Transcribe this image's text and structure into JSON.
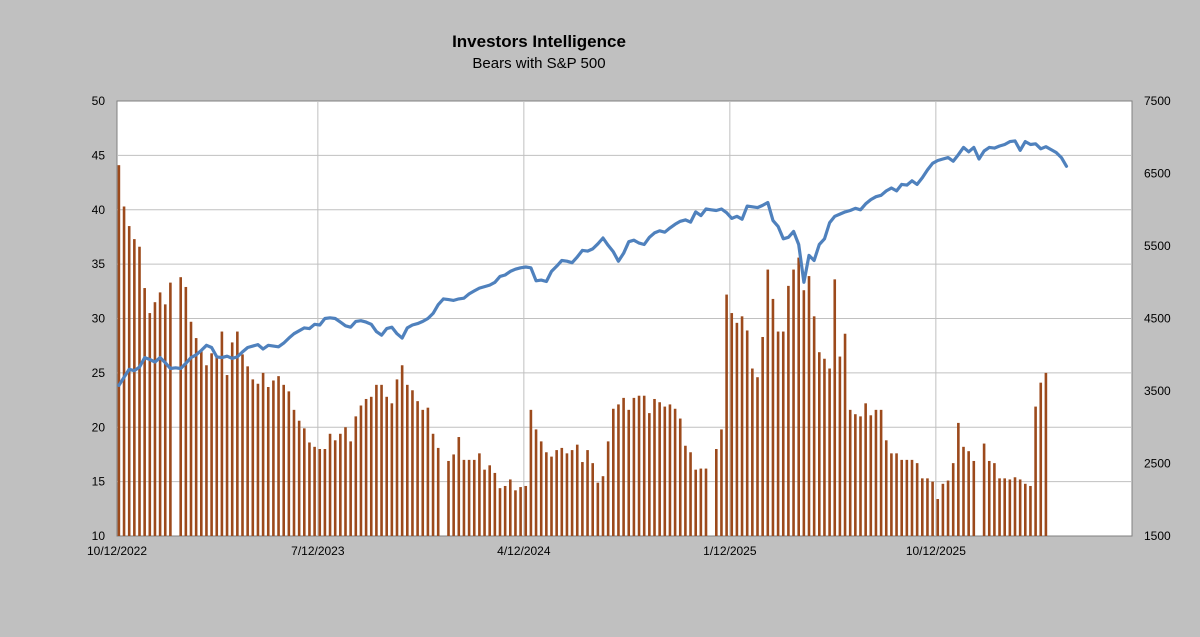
{
  "chart_data": {
    "type": "bar+line",
    "title": "Investors Intelligence",
    "subtitle": "Bears with S&P 500",
    "x_tick_labels": [
      "10/12/2022",
      "7/12/2023",
      "4/12/2024",
      "1/12/2025",
      "10/12/2025"
    ],
    "left_axis": {
      "ylim": [
        10,
        50
      ],
      "ticks": [
        10,
        15,
        20,
        25,
        30,
        35,
        40,
        45,
        50
      ]
    },
    "right_axis": {
      "ylim": [
        1500,
        7500
      ],
      "ticks": [
        1500,
        2500,
        3500,
        4500,
        5500,
        6500,
        7500
      ]
    },
    "grid": true,
    "legend": "none",
    "colors": {
      "bars": "#9c4a1c",
      "line": "#4f81bd",
      "plot_bg": "#ffffff",
      "grid": "#c0c0c0",
      "frame_bg": "#c0c0c0"
    },
    "bars": {
      "name": "Bears",
      "axis": "left",
      "values": [
        44.1,
        40.3,
        38.5,
        37.3,
        36.6,
        32.8,
        30.5,
        31.5,
        32.4,
        31.3,
        33.3,
        0,
        33.8,
        32.9,
        29.7,
        28.2,
        27.1,
        25.7,
        26.8,
        26.5,
        28.8,
        24.8,
        27.8,
        28.8,
        26.7,
        25.6,
        24.4,
        24.0,
        25.0,
        23.7,
        24.3,
        24.7,
        23.9,
        23.3,
        21.6,
        20.6,
        19.9,
        18.6,
        18.2,
        18.0,
        18.0,
        19.4,
        18.8,
        19.4,
        20.0,
        18.7,
        21.0,
        22.0,
        22.6,
        22.8,
        23.9,
        23.9,
        22.8,
        22.2,
        24.4,
        25.7,
        23.9,
        23.4,
        22.4,
        21.6,
        21.8,
        19.4,
        18.1,
        0,
        16.9,
        17.5,
        19.1,
        17.0,
        17.0,
        17.0,
        17.6,
        16.1,
        16.5,
        15.8,
        14.4,
        14.6,
        15.2,
        14.2,
        14.5,
        14.6,
        21.6,
        19.8,
        18.7,
        17.7,
        17.3,
        17.9,
        18.1,
        17.6,
        17.9,
        18.4,
        16.8,
        17.9,
        16.7,
        14.9,
        15.5,
        18.7,
        21.7,
        22.1,
        22.7,
        21.6,
        22.7,
        22.9,
        22.9,
        21.3,
        22.6,
        22.3,
        21.9,
        22.1,
        21.7,
        20.8,
        18.3,
        17.7,
        16.1,
        16.2,
        16.2,
        0,
        18.0,
        19.8,
        32.2,
        30.5,
        29.6,
        30.2,
        28.9,
        25.4,
        24.6,
        28.3,
        34.5,
        31.8,
        28.8,
        28.8,
        33.0,
        34.5,
        35.6,
        32.6,
        33.9,
        30.2,
        26.9,
        26.3,
        25.4,
        33.6,
        26.5,
        28.6,
        21.6,
        21.2,
        21.0,
        22.2,
        21.1,
        21.6,
        21.6,
        18.8,
        17.6,
        17.6,
        17.0,
        17.0,
        17.0,
        16.7,
        15.3,
        15.3,
        15.0,
        13.4,
        14.8,
        15.1,
        16.7,
        20.4,
        18.2,
        17.8,
        16.9,
        0,
        18.5,
        16.9,
        16.7,
        15.3,
        15.3,
        15.2,
        15.4,
        15.2,
        14.8,
        14.6,
        21.9,
        24.1,
        25.0
      ]
    },
    "line": {
      "name": "S&P 500",
      "axis": "right",
      "points": [
        [
          0,
          3577
        ],
        [
          1,
          3690
        ],
        [
          2,
          3800
        ],
        [
          3,
          3780
        ],
        [
          4,
          3830
        ],
        [
          5,
          3960
        ],
        [
          6,
          3935
        ],
        [
          7,
          3900
        ],
        [
          8,
          3960
        ],
        [
          9,
          3890
        ],
        [
          10,
          3810
        ],
        [
          11,
          3820
        ],
        [
          12,
          3810
        ],
        [
          13,
          3880
        ],
        [
          14,
          3960
        ],
        [
          15,
          4000
        ],
        [
          16,
          4060
        ],
        [
          17,
          4130
        ],
        [
          18,
          4100
        ],
        [
          19,
          3970
        ],
        [
          20,
          3960
        ],
        [
          21,
          3980
        ],
        [
          22,
          3950
        ],
        [
          23,
          3970
        ],
        [
          24,
          4040
        ],
        [
          25,
          4100
        ],
        [
          26,
          4120
        ],
        [
          27,
          4140
        ],
        [
          28,
          4080
        ],
        [
          29,
          4130
        ],
        [
          30,
          4120
        ],
        [
          31,
          4110
        ],
        [
          32,
          4160
        ],
        [
          33,
          4230
        ],
        [
          34,
          4290
        ],
        [
          35,
          4330
        ],
        [
          36,
          4370
        ],
        [
          37,
          4360
        ],
        [
          38,
          4420
        ],
        [
          39,
          4410
        ],
        [
          40,
          4500
        ],
        [
          41,
          4510
        ],
        [
          42,
          4500
        ],
        [
          43,
          4450
        ],
        [
          44,
          4400
        ],
        [
          45,
          4380
        ],
        [
          46,
          4460
        ],
        [
          47,
          4470
        ],
        [
          48,
          4450
        ],
        [
          49,
          4420
        ],
        [
          50,
          4320
        ],
        [
          51,
          4270
        ],
        [
          52,
          4360
        ],
        [
          53,
          4380
        ],
        [
          54,
          4290
        ],
        [
          55,
          4230
        ],
        [
          56,
          4370
        ],
        [
          57,
          4410
        ],
        [
          58,
          4430
        ],
        [
          59,
          4460
        ],
        [
          60,
          4500
        ],
        [
          61,
          4570
        ],
        [
          62,
          4690
        ],
        [
          63,
          4770
        ],
        [
          64,
          4760
        ],
        [
          65,
          4750
        ],
        [
          66,
          4770
        ],
        [
          67,
          4780
        ],
        [
          68,
          4840
        ],
        [
          69,
          4880
        ],
        [
          70,
          4920
        ],
        [
          71,
          4940
        ],
        [
          72,
          4960
        ],
        [
          73,
          5000
        ],
        [
          74,
          5080
        ],
        [
          75,
          5100
        ],
        [
          76,
          5150
        ],
        [
          77,
          5180
        ],
        [
          78,
          5200
        ],
        [
          79,
          5210
        ],
        [
          80,
          5200
        ],
        [
          81,
          5020
        ],
        [
          82,
          5030
        ],
        [
          83,
          5010
        ],
        [
          84,
          5150
        ],
        [
          85,
          5220
        ],
        [
          86,
          5300
        ],
        [
          87,
          5290
        ],
        [
          88,
          5270
        ],
        [
          89,
          5350
        ],
        [
          90,
          5440
        ],
        [
          91,
          5430
        ],
        [
          92,
          5460
        ],
        [
          93,
          5530
        ],
        [
          94,
          5610
        ],
        [
          95,
          5510
        ],
        [
          96,
          5420
        ],
        [
          97,
          5290
        ],
        [
          98,
          5400
        ],
        [
          99,
          5560
        ],
        [
          100,
          5580
        ],
        [
          101,
          5540
        ],
        [
          102,
          5520
        ],
        [
          103,
          5620
        ],
        [
          104,
          5680
        ],
        [
          105,
          5710
        ],
        [
          106,
          5690
        ],
        [
          107,
          5750
        ],
        [
          108,
          5800
        ],
        [
          109,
          5840
        ],
        [
          110,
          5860
        ],
        [
          111,
          5830
        ],
        [
          112,
          5970
        ],
        [
          113,
          5920
        ],
        [
          114,
          6010
        ],
        [
          115,
          6000
        ],
        [
          116,
          5990
        ],
        [
          117,
          6010
        ],
        [
          118,
          5960
        ],
        [
          119,
          5880
        ],
        [
          120,
          5910
        ],
        [
          121,
          5870
        ],
        [
          122,
          6050
        ],
        [
          123,
          6040
        ],
        [
          124,
          6030
        ],
        [
          125,
          6060
        ],
        [
          126,
          6100
        ],
        [
          127,
          5850
        ],
        [
          128,
          5770
        ],
        [
          129,
          5600
        ],
        [
          130,
          5620
        ],
        [
          131,
          5700
        ],
        [
          132,
          5520
        ],
        [
          133,
          5000
        ],
        [
          134,
          5370
        ],
        [
          135,
          5300
        ],
        [
          136,
          5520
        ],
        [
          137,
          5600
        ],
        [
          138,
          5820
        ],
        [
          139,
          5910
        ],
        [
          140,
          5940
        ],
        [
          141,
          5970
        ],
        [
          142,
          5990
        ],
        [
          143,
          6020
        ],
        [
          144,
          6000
        ],
        [
          145,
          6080
        ],
        [
          146,
          6140
        ],
        [
          147,
          6180
        ],
        [
          148,
          6200
        ],
        [
          149,
          6260
        ],
        [
          150,
          6300
        ],
        [
          151,
          6260
        ],
        [
          152,
          6350
        ],
        [
          153,
          6340
        ],
        [
          154,
          6400
        ],
        [
          155,
          6350
        ],
        [
          156,
          6440
        ],
        [
          157,
          6550
        ],
        [
          158,
          6640
        ],
        [
          159,
          6680
        ],
        [
          160,
          6700
        ],
        [
          161,
          6720
        ],
        [
          162,
          6670
        ],
        [
          163,
          6760
        ],
        [
          164,
          6860
        ],
        [
          165,
          6800
        ],
        [
          166,
          6860
        ],
        [
          167,
          6700
        ],
        [
          168,
          6810
        ],
        [
          169,
          6860
        ],
        [
          170,
          6850
        ],
        [
          171,
          6880
        ],
        [
          172,
          6900
        ],
        [
          173,
          6940
        ],
        [
          174,
          6950
        ],
        [
          175,
          6820
        ],
        [
          176,
          6940
        ],
        [
          177,
          6900
        ],
        [
          178,
          6910
        ],
        [
          179,
          6840
        ],
        [
          180,
          6870
        ],
        [
          181,
          6830
        ],
        [
          182,
          6790
        ],
        [
          183,
          6720
        ],
        [
          184,
          6600
        ]
      ]
    }
  }
}
